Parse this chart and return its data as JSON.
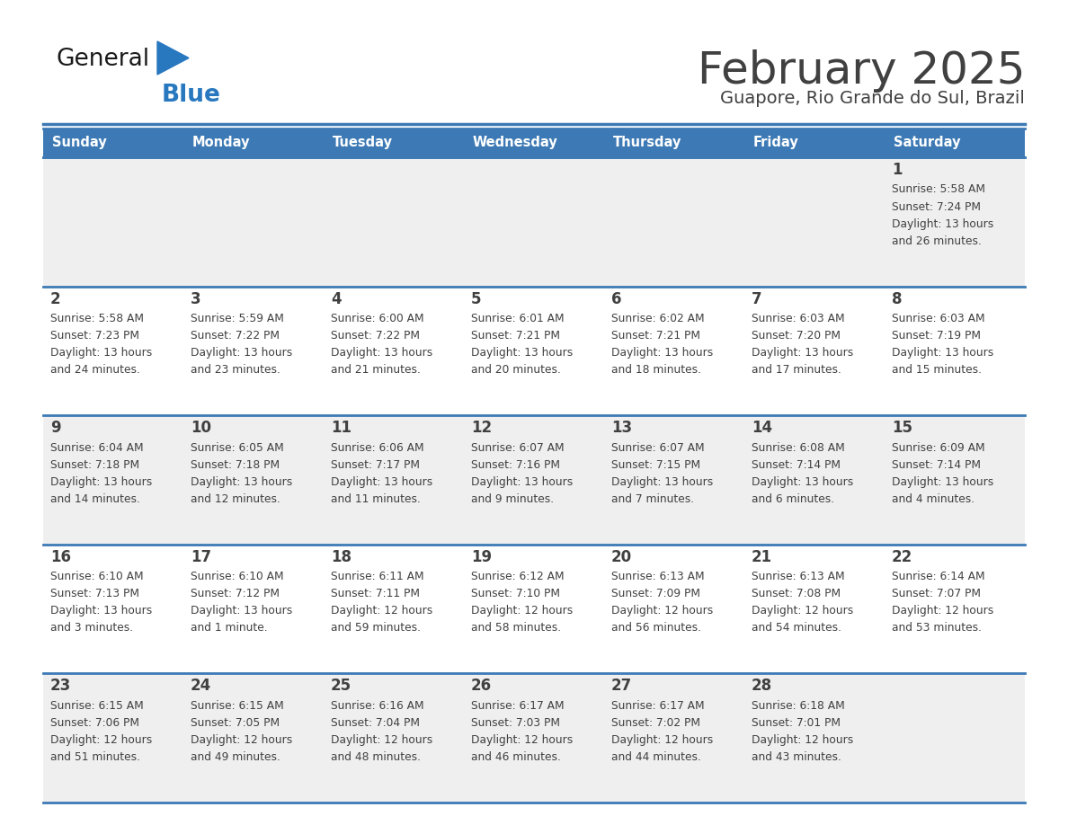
{
  "title": "February 2025",
  "subtitle": "Guapore, Rio Grande do Sul, Brazil",
  "days_of_week": [
    "Sunday",
    "Monday",
    "Tuesday",
    "Wednesday",
    "Thursday",
    "Friday",
    "Saturday"
  ],
  "header_bg": "#3d7ab5",
  "header_text": "#ffffff",
  "cell_bg_odd": "#efefef",
  "cell_bg_even": "#ffffff",
  "border_color": "#3d7ab5",
  "text_color": "#404040",
  "date_color": "#3d7ab5",
  "logo_general_color": "#1a1a1a",
  "logo_blue_color": "#2878c0",
  "logo_triangle_color": "#2878c0",
  "week_rows": [
    {
      "days": [
        {
          "date": null,
          "sunrise": null,
          "sunset": null,
          "daylight_h": null,
          "daylight_m": null
        },
        {
          "date": null,
          "sunrise": null,
          "sunset": null,
          "daylight_h": null,
          "daylight_m": null
        },
        {
          "date": null,
          "sunrise": null,
          "sunset": null,
          "daylight_h": null,
          "daylight_m": null
        },
        {
          "date": null,
          "sunrise": null,
          "sunset": null,
          "daylight_h": null,
          "daylight_m": null
        },
        {
          "date": null,
          "sunrise": null,
          "sunset": null,
          "daylight_h": null,
          "daylight_m": null
        },
        {
          "date": null,
          "sunrise": null,
          "sunset": null,
          "daylight_h": null,
          "daylight_m": null
        },
        {
          "date": 1,
          "sunrise": "5:58 AM",
          "sunset": "7:24 PM",
          "daylight_h": "13 hours",
          "daylight_m": "and 26 minutes."
        }
      ]
    },
    {
      "days": [
        {
          "date": 2,
          "sunrise": "5:58 AM",
          "sunset": "7:23 PM",
          "daylight_h": "13 hours",
          "daylight_m": "and 24 minutes."
        },
        {
          "date": 3,
          "sunrise": "5:59 AM",
          "sunset": "7:22 PM",
          "daylight_h": "13 hours",
          "daylight_m": "and 23 minutes."
        },
        {
          "date": 4,
          "sunrise": "6:00 AM",
          "sunset": "7:22 PM",
          "daylight_h": "13 hours",
          "daylight_m": "and 21 minutes."
        },
        {
          "date": 5,
          "sunrise": "6:01 AM",
          "sunset": "7:21 PM",
          "daylight_h": "13 hours",
          "daylight_m": "and 20 minutes."
        },
        {
          "date": 6,
          "sunrise": "6:02 AM",
          "sunset": "7:21 PM",
          "daylight_h": "13 hours",
          "daylight_m": "and 18 minutes."
        },
        {
          "date": 7,
          "sunrise": "6:03 AM",
          "sunset": "7:20 PM",
          "daylight_h": "13 hours",
          "daylight_m": "and 17 minutes."
        },
        {
          "date": 8,
          "sunrise": "6:03 AM",
          "sunset": "7:19 PM",
          "daylight_h": "13 hours",
          "daylight_m": "and 15 minutes."
        }
      ]
    },
    {
      "days": [
        {
          "date": 9,
          "sunrise": "6:04 AM",
          "sunset": "7:18 PM",
          "daylight_h": "13 hours",
          "daylight_m": "and 14 minutes."
        },
        {
          "date": 10,
          "sunrise": "6:05 AM",
          "sunset": "7:18 PM",
          "daylight_h": "13 hours",
          "daylight_m": "and 12 minutes."
        },
        {
          "date": 11,
          "sunrise": "6:06 AM",
          "sunset": "7:17 PM",
          "daylight_h": "13 hours",
          "daylight_m": "and 11 minutes."
        },
        {
          "date": 12,
          "sunrise": "6:07 AM",
          "sunset": "7:16 PM",
          "daylight_h": "13 hours",
          "daylight_m": "and 9 minutes."
        },
        {
          "date": 13,
          "sunrise": "6:07 AM",
          "sunset": "7:15 PM",
          "daylight_h": "13 hours",
          "daylight_m": "and 7 minutes."
        },
        {
          "date": 14,
          "sunrise": "6:08 AM",
          "sunset": "7:14 PM",
          "daylight_h": "13 hours",
          "daylight_m": "and 6 minutes."
        },
        {
          "date": 15,
          "sunrise": "6:09 AM",
          "sunset": "7:14 PM",
          "daylight_h": "13 hours",
          "daylight_m": "and 4 minutes."
        }
      ]
    },
    {
      "days": [
        {
          "date": 16,
          "sunrise": "6:10 AM",
          "sunset": "7:13 PM",
          "daylight_h": "13 hours",
          "daylight_m": "and 3 minutes."
        },
        {
          "date": 17,
          "sunrise": "6:10 AM",
          "sunset": "7:12 PM",
          "daylight_h": "13 hours",
          "daylight_m": "and 1 minute."
        },
        {
          "date": 18,
          "sunrise": "6:11 AM",
          "sunset": "7:11 PM",
          "daylight_h": "12 hours",
          "daylight_m": "and 59 minutes."
        },
        {
          "date": 19,
          "sunrise": "6:12 AM",
          "sunset": "7:10 PM",
          "daylight_h": "12 hours",
          "daylight_m": "and 58 minutes."
        },
        {
          "date": 20,
          "sunrise": "6:13 AM",
          "sunset": "7:09 PM",
          "daylight_h": "12 hours",
          "daylight_m": "and 56 minutes."
        },
        {
          "date": 21,
          "sunrise": "6:13 AM",
          "sunset": "7:08 PM",
          "daylight_h": "12 hours",
          "daylight_m": "and 54 minutes."
        },
        {
          "date": 22,
          "sunrise": "6:14 AM",
          "sunset": "7:07 PM",
          "daylight_h": "12 hours",
          "daylight_m": "and 53 minutes."
        }
      ]
    },
    {
      "days": [
        {
          "date": 23,
          "sunrise": "6:15 AM",
          "sunset": "7:06 PM",
          "daylight_h": "12 hours",
          "daylight_m": "and 51 minutes."
        },
        {
          "date": 24,
          "sunrise": "6:15 AM",
          "sunset": "7:05 PM",
          "daylight_h": "12 hours",
          "daylight_m": "and 49 minutes."
        },
        {
          "date": 25,
          "sunrise": "6:16 AM",
          "sunset": "7:04 PM",
          "daylight_h": "12 hours",
          "daylight_m": "and 48 minutes."
        },
        {
          "date": 26,
          "sunrise": "6:17 AM",
          "sunset": "7:03 PM",
          "daylight_h": "12 hours",
          "daylight_m": "and 46 minutes."
        },
        {
          "date": 27,
          "sunrise": "6:17 AM",
          "sunset": "7:02 PM",
          "daylight_h": "12 hours",
          "daylight_m": "and 44 minutes."
        },
        {
          "date": 28,
          "sunrise": "6:18 AM",
          "sunset": "7:01 PM",
          "daylight_h": "12 hours",
          "daylight_m": "and 43 minutes."
        },
        {
          "date": null,
          "sunrise": null,
          "sunset": null,
          "daylight_h": null,
          "daylight_m": null
        }
      ]
    }
  ]
}
